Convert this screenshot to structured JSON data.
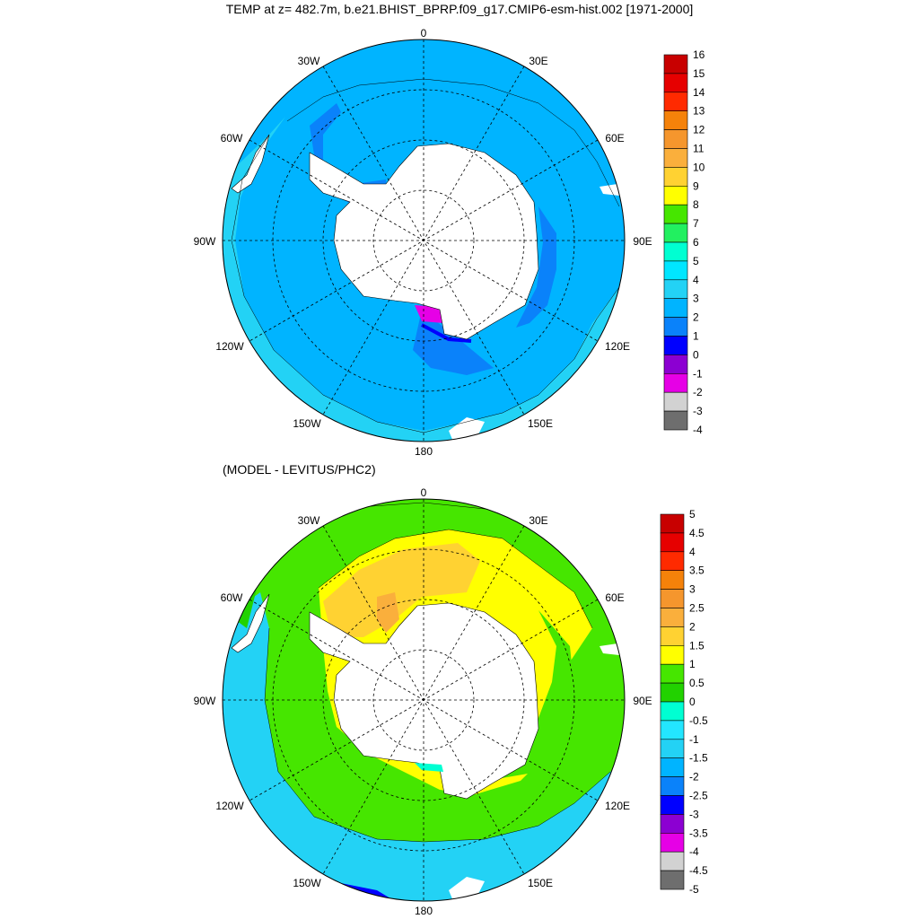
{
  "title": "TEMP at z= 482.7m, b.e21.BHIST_BPRP.f09_g17.CMIP6-esm-hist.002 [1971-2000]",
  "subtitle": "(MODEL - LEVITUS/PHC2)",
  "lon_labels": [
    "0",
    "30E",
    "60E",
    "90E",
    "120E",
    "150E",
    "180",
    "150W",
    "120W",
    "90W",
    "60W",
    "30W"
  ],
  "top_map": {
    "colorbar_labels": [
      "16",
      "15",
      "14",
      "13",
      "12",
      "11",
      "10",
      "9",
      "8",
      "7",
      "6",
      "5",
      "4",
      "3",
      "2",
      "1",
      "0",
      "-1",
      "-2",
      "-3",
      "-4"
    ],
    "colorbar_colors": [
      "#c80000",
      "#e60000",
      "#ff2a00",
      "#f5820a",
      "#f5962d",
      "#faaf3c",
      "#ffd232",
      "#ffff00",
      "#46e600",
      "#22f060",
      "#00ffd2",
      "#00e6ff",
      "#23d2f5",
      "#00b4ff",
      "#0a82fa",
      "#0000ff",
      "#8c00d2",
      "#e600e6",
      "#d2d2d2",
      "#6e6e6e"
    ]
  },
  "bottom_map": {
    "colorbar_labels": [
      "5",
      "4.5",
      "4",
      "3.5",
      "3",
      "2.5",
      "2",
      "1.5",
      "1",
      "0.5",
      "0",
      "-0.5",
      "-1",
      "-1.5",
      "-2",
      "-2.5",
      "-3",
      "-3.5",
      "-4",
      "-4.5",
      "-5"
    ],
    "colorbar_colors": [
      "#c80000",
      "#e60000",
      "#ff2a00",
      "#f5820a",
      "#f5962d",
      "#faaf3c",
      "#ffd232",
      "#ffff00",
      "#46e600",
      "#22d200",
      "#00ffd2",
      "#23e6ff",
      "#23d2f5",
      "#00b4ff",
      "#0a82fa",
      "#0000ff",
      "#8c00d2",
      "#e600e6",
      "#d2d2d2",
      "#6e6e6e"
    ]
  },
  "colors": {
    "ocean_top_outer": "#00b4ff",
    "ocean_top_band": "#23d2f5",
    "ocean_top_inner": "#0a82fa",
    "ocean_bottom_base": "#46e600",
    "ocean_bottom_warm": "#ffff00",
    "ocean_bottom_warmer": "#ffd232",
    "ocean_bottom_cool": "#23d2f5",
    "land": "#ffffff"
  }
}
